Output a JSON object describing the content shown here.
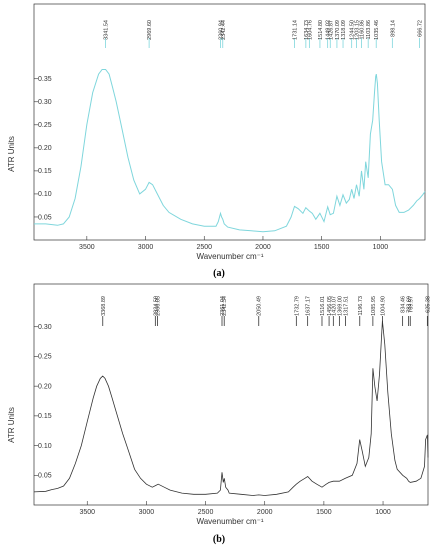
{
  "chart_data": [
    {
      "type": "line",
      "caption": "(a)",
      "xlabel": "Wavenumber cm⁻¹",
      "ylabel": "ATR Units",
      "xlim": [
        3950,
        620
      ],
      "ylim": [
        0.0,
        0.395
      ],
      "x_ticks": [
        3500,
        3000,
        2500,
        2000,
        1500,
        1000
      ],
      "y_ticks": [
        0.05,
        0.1,
        0.15,
        0.2,
        0.25,
        0.3,
        0.35
      ],
      "y_tick_labels": [
        "0.05",
        "0.10",
        "0.15",
        "0.20",
        "0.25",
        "0.30",
        "0.35"
      ],
      "line_color": "#7fd6dc",
      "peak_labels": [
        "3341.54",
        "2969.60",
        "2360.94",
        "2342.44",
        "1731.14",
        "1634.73",
        "1604.76",
        "1514.80",
        "1449.02",
        "1426.87",
        "1370.09",
        "1318.09",
        "1244.50",
        "1203.15",
        "1160.86",
        "1103.86",
        "1035.46",
        "898.14",
        "666.72"
      ],
      "peak_positions": [
        3341.54,
        2969.6,
        2360.94,
        2342.44,
        1731.14,
        1634.73,
        1604.76,
        1514.8,
        1449.02,
        1426.87,
        1370.09,
        1318.09,
        1244.5,
        1203.15,
        1160.86,
        1103.86,
        1035.46,
        898.14,
        666.72
      ],
      "x": [
        3950,
        3850,
        3750,
        3700,
        3650,
        3600,
        3550,
        3500,
        3450,
        3400,
        3370,
        3340,
        3310,
        3280,
        3250,
        3200,
        3150,
        3100,
        3050,
        3000,
        2970,
        2940,
        2900,
        2850,
        2800,
        2700,
        2600,
        2500,
        2400,
        2380,
        2362,
        2352,
        2342,
        2330,
        2300,
        2200,
        2100,
        2000,
        1900,
        1800,
        1760,
        1731,
        1700,
        1660,
        1635,
        1605,
        1580,
        1550,
        1515,
        1480,
        1449,
        1427,
        1400,
        1370,
        1345,
        1318,
        1290,
        1265,
        1244,
        1225,
        1203,
        1180,
        1161,
        1140,
        1125,
        1104,
        1085,
        1065,
        1050,
        1040,
        1035,
        1025,
        1010,
        990,
        960,
        930,
        898,
        870,
        840,
        800,
        760,
        720,
        690,
        666,
        640,
        620
      ],
      "y": [
        0.035,
        0.035,
        0.032,
        0.035,
        0.05,
        0.09,
        0.16,
        0.25,
        0.32,
        0.36,
        0.37,
        0.37,
        0.36,
        0.33,
        0.3,
        0.24,
        0.18,
        0.13,
        0.1,
        0.11,
        0.125,
        0.12,
        0.1,
        0.075,
        0.06,
        0.045,
        0.035,
        0.03,
        0.03,
        0.04,
        0.058,
        0.05,
        0.045,
        0.035,
        0.028,
        0.022,
        0.02,
        0.018,
        0.02,
        0.03,
        0.05,
        0.073,
        0.068,
        0.058,
        0.07,
        0.063,
        0.058,
        0.045,
        0.058,
        0.04,
        0.072,
        0.055,
        0.058,
        0.095,
        0.075,
        0.098,
        0.08,
        0.088,
        0.11,
        0.09,
        0.12,
        0.095,
        0.15,
        0.11,
        0.17,
        0.135,
        0.23,
        0.26,
        0.32,
        0.355,
        0.36,
        0.34,
        0.26,
        0.17,
        0.12,
        0.12,
        0.11,
        0.075,
        0.06,
        0.06,
        0.065,
        0.075,
        0.085,
        0.09,
        0.098,
        0.105
      ]
    },
    {
      "type": "line",
      "caption": "(b)",
      "xlabel": "Wavenumber cm⁻¹",
      "ylabel": "ATR Units",
      "xlim": [
        3950,
        620
      ],
      "ylim": [
        0.0,
        0.345
      ],
      "x_ticks": [
        3500,
        3000,
        2500,
        2000,
        1500,
        1000
      ],
      "y_ticks": [
        0.05,
        0.1,
        0.15,
        0.2,
        0.25,
        0.3
      ],
      "y_tick_labels": [
        "0.05",
        "0.10",
        "0.15",
        "0.20",
        "0.25",
        "0.30"
      ],
      "line_color": "#333333",
      "peak_labels": [
        "3368.89",
        "2924.50",
        "2906.05",
        "2361.04",
        "2342.34",
        "2050.49",
        "1732.79",
        "1637.17",
        "1516.01",
        "1456.05",
        "1420.07",
        "1369.00",
        "1317.51",
        "1196.73",
        "1085.95",
        "1004.90",
        "834.46",
        "783.69",
        "769.97",
        "625.38"
      ],
      "peak_positions": [
        3368.89,
        2924.5,
        2906.05,
        2361.04,
        2342.34,
        2050.49,
        1732.79,
        1637.17,
        1516.01,
        1456.05,
        1420.07,
        1369.0,
        1317.51,
        1196.73,
        1085.95,
        1004.9,
        834.46,
        783.69,
        769.97,
        625.38
      ],
      "x": [
        3950,
        3850,
        3800,
        3750,
        3700,
        3650,
        3600,
        3550,
        3500,
        3450,
        3420,
        3390,
        3369,
        3350,
        3320,
        3290,
        3260,
        3200,
        3150,
        3100,
        3050,
        3000,
        2950,
        2920,
        2900,
        2850,
        2800,
        2700,
        2600,
        2500,
        2400,
        2375,
        2361,
        2350,
        2342,
        2330,
        2310,
        2300,
        2200,
        2100,
        2050,
        2000,
        1900,
        1800,
        1760,
        1733,
        1700,
        1660,
        1637,
        1600,
        1560,
        1516,
        1480,
        1456,
        1420,
        1369,
        1318,
        1260,
        1220,
        1197,
        1175,
        1150,
        1120,
        1100,
        1086,
        1070,
        1050,
        1030,
        1005,
        985,
        960,
        930,
        900,
        880,
        834,
        800,
        784,
        770,
        720,
        680,
        650,
        640,
        625,
        610
      ],
      "y": [
        0.022,
        0.023,
        0.026,
        0.028,
        0.032,
        0.045,
        0.07,
        0.1,
        0.14,
        0.18,
        0.2,
        0.213,
        0.217,
        0.213,
        0.2,
        0.18,
        0.16,
        0.12,
        0.09,
        0.06,
        0.045,
        0.035,
        0.03,
        0.033,
        0.035,
        0.03,
        0.025,
        0.02,
        0.018,
        0.018,
        0.02,
        0.025,
        0.055,
        0.038,
        0.045,
        0.03,
        0.025,
        0.02,
        0.018,
        0.016,
        0.017,
        0.016,
        0.018,
        0.022,
        0.03,
        0.035,
        0.04,
        0.045,
        0.048,
        0.04,
        0.035,
        0.03,
        0.035,
        0.038,
        0.04,
        0.04,
        0.045,
        0.05,
        0.07,
        0.11,
        0.09,
        0.065,
        0.08,
        0.12,
        0.23,
        0.2,
        0.175,
        0.22,
        0.31,
        0.27,
        0.19,
        0.12,
        0.075,
        0.06,
        0.05,
        0.045,
        0.04,
        0.038,
        0.04,
        0.045,
        0.065,
        0.11,
        0.118,
        0.08
      ]
    }
  ]
}
